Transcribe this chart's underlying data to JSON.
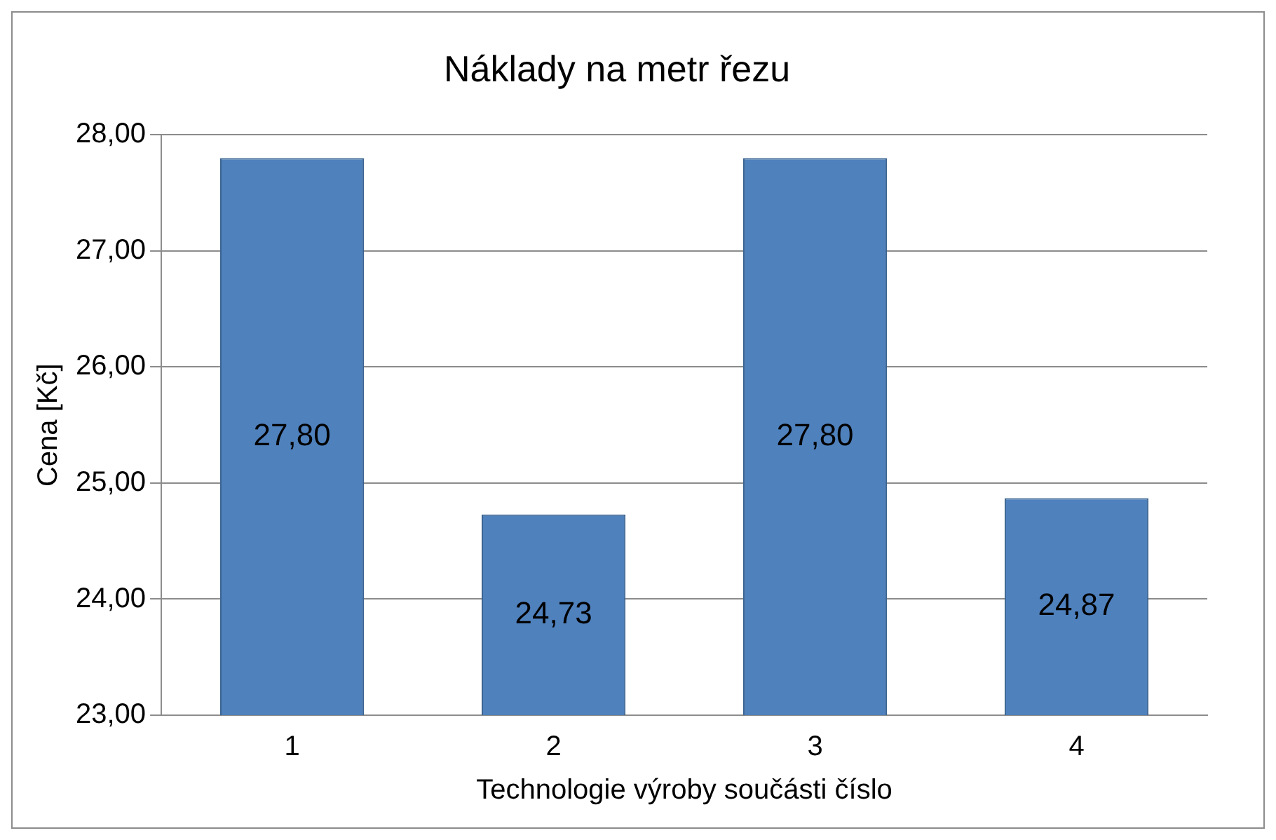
{
  "chart_data": {
    "type": "bar",
    "title": "Náklady na metr řezu",
    "xlabel": "Technologie výroby součásti číslo",
    "ylabel": "Cena [Kč]",
    "categories": [
      "1",
      "2",
      "3",
      "4"
    ],
    "values": [
      27.8,
      24.73,
      27.8,
      24.87
    ],
    "value_labels": [
      "27,80",
      "24,73",
      "27,80",
      "24,87"
    ],
    "color": "#4f81bd",
    "ylim": [
      23,
      28
    ],
    "yticks": [
      {
        "value": 23,
        "label": "23,00"
      },
      {
        "value": 24,
        "label": "24,00"
      },
      {
        "value": 25,
        "label": "25,00"
      },
      {
        "value": 26,
        "label": "26,00"
      },
      {
        "value": 27,
        "label": "27,00"
      },
      {
        "value": 28,
        "label": "28,00"
      }
    ],
    "grid": "y",
    "legend": false
  }
}
